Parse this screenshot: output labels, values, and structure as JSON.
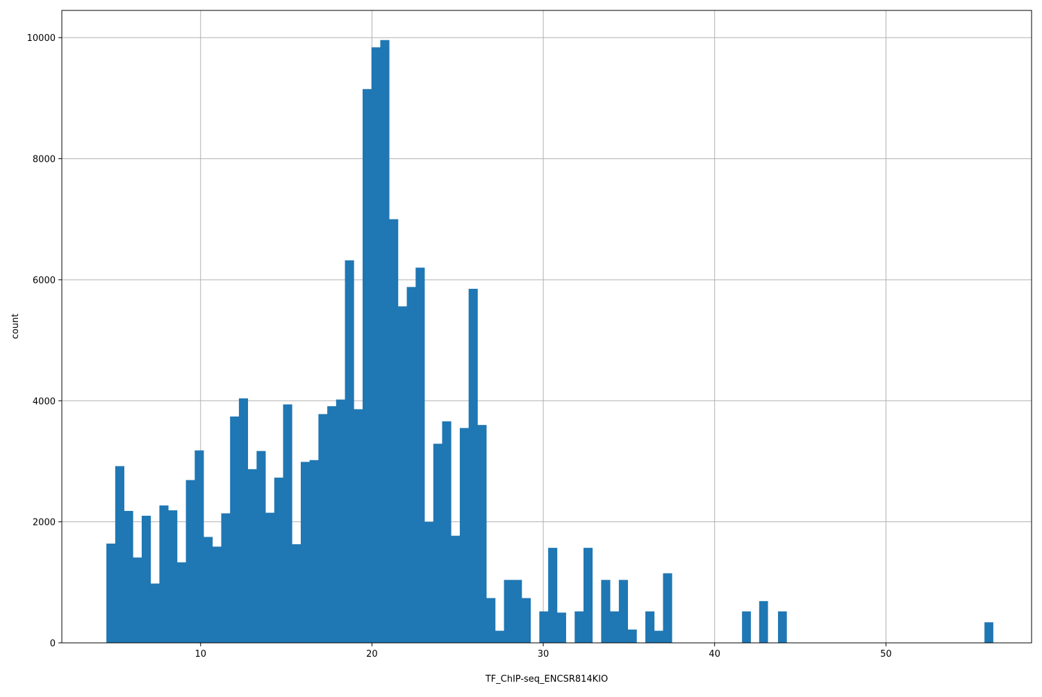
{
  "chart_data": {
    "type": "bar",
    "xlabel": "TF_ChIP-seq_ENCSR814KIO",
    "ylabel": "count",
    "xlim": [
      1.9,
      58.5
    ],
    "ylim": [
      0,
      10450
    ],
    "xticks": [
      10,
      20,
      30,
      40,
      50
    ],
    "yticks": [
      0,
      2000,
      4000,
      6000,
      8000,
      10000
    ],
    "grid": true,
    "bar_color": "#1f77b4",
    "grid_color": "#b0b0b0",
    "bins": {
      "start": 4.5,
      "width": 0.5157,
      "counts": [
        1640,
        2920,
        2180,
        1410,
        2100,
        980,
        2270,
        2190,
        1330,
        2690,
        3180,
        1750,
        1590,
        2140,
        3740,
        4040,
        2870,
        3170,
        2150,
        2730,
        3940,
        1630,
        2990,
        3020,
        3780,
        3910,
        4020,
        6320,
        3860,
        9150,
        9840,
        9960,
        7000,
        5560,
        5880,
        6200,
        2000,
        3290,
        3660,
        1770,
        3550,
        5850,
        3600,
        740,
        200,
        1040,
        1040,
        740,
        0,
        520,
        1570,
        500,
        0,
        520,
        1570,
        0,
        1040,
        520,
        1040,
        220,
        0,
        520,
        200,
        1150,
        0,
        0,
        0,
        0,
        0,
        0,
        0,
        0,
        0,
        0,
        0,
        0,
        0,
        0,
        0,
        0,
        0,
        0,
        0,
        0,
        0,
        0,
        0,
        0,
        0,
        0,
        0,
        0,
        0,
        0,
        0,
        0,
        0,
        0,
        0,
        0,
        0,
        0,
        0,
        0,
        0,
        0,
        0,
        0,
        0,
        0,
        0,
        0,
        0,
        0,
        0,
        0,
        0,
        0,
        0,
        0,
        0,
        0,
        0,
        0,
        0,
        0,
        0,
        0,
        0,
        0,
        0,
        0,
        0,
        0,
        0,
        0,
        0,
        0,
        0,
        0,
        0,
        0,
        0,
        0,
        0,
        0,
        0,
        0,
        0,
        0,
        0,
        0,
        0,
        0,
        0,
        0,
        0,
        0,
        0,
        0,
        0,
        0,
        0,
        0,
        0,
        0,
        0,
        0,
        0,
        0,
        0,
        0,
        0,
        0,
        0,
        0,
        0,
        0,
        0,
        0,
        0,
        0,
        0,
        0,
        0,
        0,
        0,
        0,
        0,
        0,
        0,
        0,
        0,
        0,
        0,
        0,
        0,
        0,
        0,
        0,
        0,
        0,
        0,
        0,
        0,
        0,
        0,
        0,
        0,
        0,
        0,
        0,
        0,
        0,
        0,
        0,
        0,
        0,
        0,
        0,
        0,
        0,
        0,
        0,
        0,
        0,
        0,
        0,
        0,
        0,
        0,
        0,
        0,
        0,
        0,
        0,
        0,
        0,
        0,
        0,
        0,
        0,
        0,
        0,
        0,
        0,
        0,
        0,
        0
      ]
    },
    "extra_bars": [
      {
        "x": 41.6,
        "width": 0.5157,
        "count": 520
      },
      {
        "x": 42.6,
        "width": 0.5157,
        "count": 690
      },
      {
        "x": 43.7,
        "width": 0.5157,
        "count": 520
      },
      {
        "x": 55.75,
        "width": 0.5157,
        "count": 340
      }
    ]
  }
}
